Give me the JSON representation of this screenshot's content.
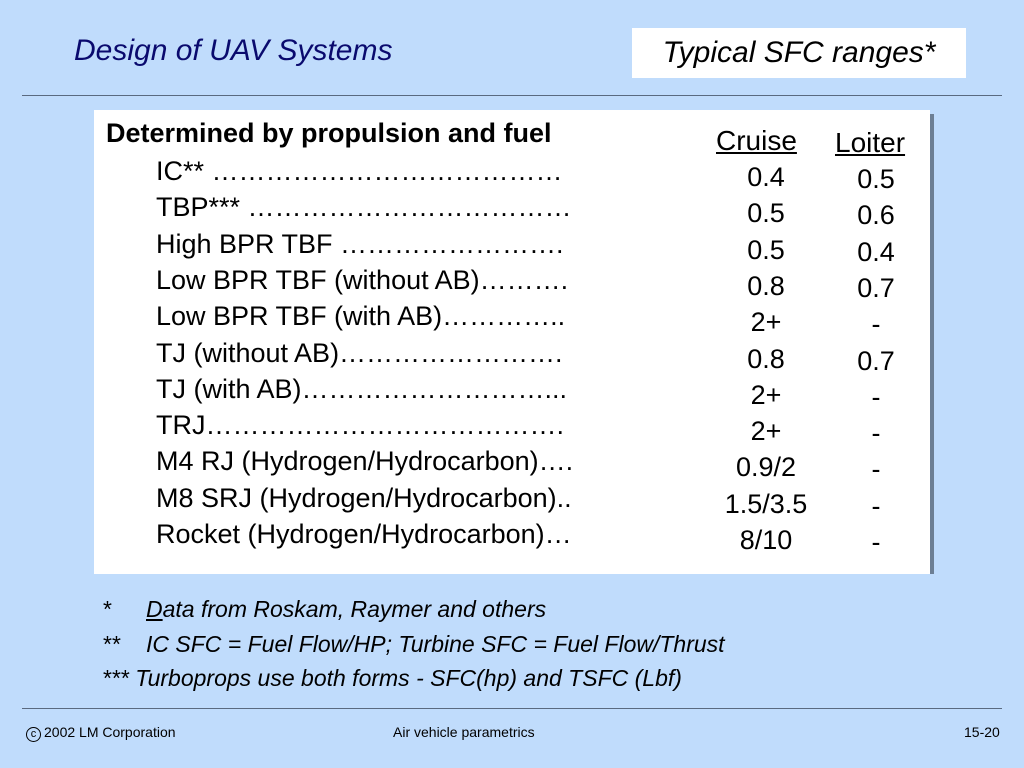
{
  "header": {
    "title": "Design of UAV Systems",
    "topic": "Typical SFC ranges*"
  },
  "table": {
    "heading": "Determined by propulsion and fuel",
    "columns": [
      "Cruise",
      "Loiter"
    ],
    "rows": [
      {
        "label": "IC** …………………………………",
        "cruise": "0.4",
        "loiter": "0.5"
      },
      {
        "label": "TBP*** ………………………………",
        "cruise": "0.5",
        "loiter": "0.6"
      },
      {
        "label": "High BPR TBF …………………….",
        "cruise": "0.5",
        "loiter": "0.4"
      },
      {
        "label": "Low BPR TBF (without AB)……….",
        "cruise": "0.8",
        "loiter": "0.7"
      },
      {
        "label": "Low BPR TBF (with AB)…………..",
        "cruise": "2+",
        "loiter": "-"
      },
      {
        "label": "TJ (without AB)…………………….",
        "cruise": "0.8",
        "loiter": "0.7"
      },
      {
        "label": "TJ (with AB)………………………...",
        "cruise": "2+",
        "loiter": "-"
      },
      {
        "label": "TRJ………………………………….",
        "cruise": "2+",
        "loiter": "-"
      },
      {
        "label": "M4 RJ (Hydrogen/Hydrocarbon)….",
        "cruise": "0.9/2",
        "loiter": "-"
      },
      {
        "label": "M8 SRJ (Hydrogen/Hydrocarbon)..",
        "cruise": "1.5/3.5",
        "loiter": "-"
      },
      {
        "label": "Rocket (Hydrogen/Hydrocarbon)…",
        "cruise": "8/10",
        "loiter": "-"
      }
    ]
  },
  "footnotes": [
    {
      "marker": "*",
      "first": "D",
      "text": "ata from Roskam, Raymer and others"
    },
    {
      "marker": "**",
      "first": "",
      "text": "IC SFC = Fuel Flow/HP; Turbine SFC  = Fuel Flow/Thrust"
    },
    {
      "marker": "***",
      "first": "",
      "text": "Turboprops use both forms - SFC(hp) and TSFC (Lbf)"
    }
  ],
  "footer": {
    "copyright_symbol": "c",
    "copyright": "2002 LM Corporation",
    "center": "Air vehicle parametrics",
    "page": "15-20"
  }
}
